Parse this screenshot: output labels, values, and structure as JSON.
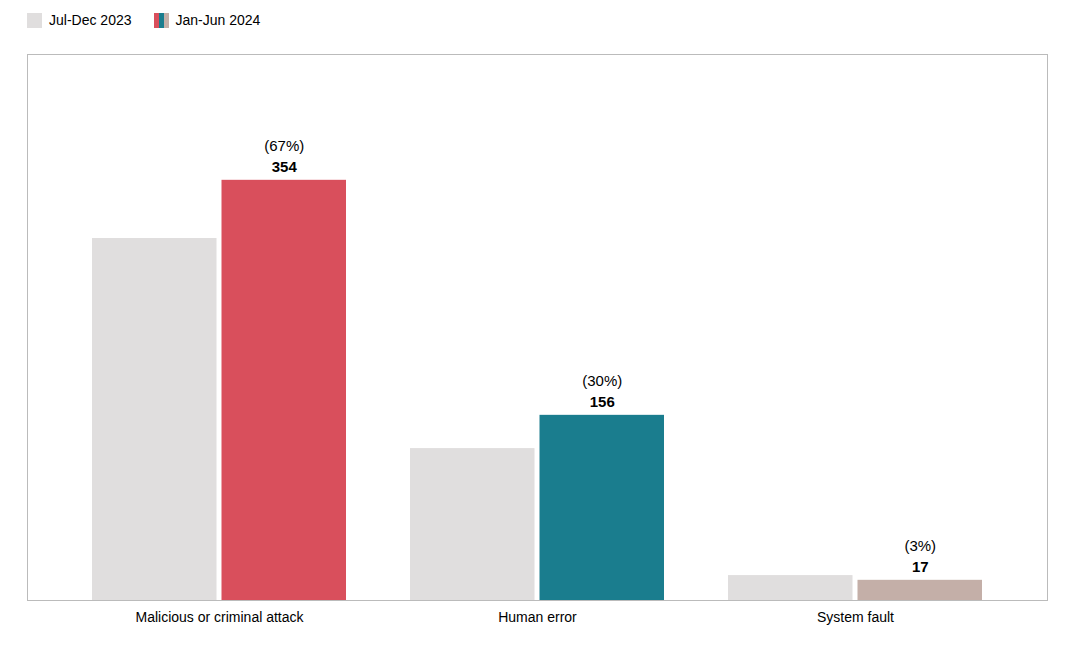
{
  "chart_data": {
    "type": "bar",
    "categories": [
      "Malicious or criminal attack",
      "Human error",
      "System fault"
    ],
    "series": [
      {
        "name": "Jul-Dec 2023",
        "color": "#e0dede",
        "values": [
          305,
          128,
          21
        ]
      },
      {
        "name": "Jan-Jun 2024",
        "colors": [
          "#d94f5c",
          "#1a7d8e",
          "#c4afa8"
        ],
        "values": [
          354,
          156,
          17
        ],
        "data_labels": true,
        "shares": [
          67,
          30,
          3
        ],
        "share_labels": [
          "(67%)",
          "(30%)",
          "(3%)"
        ]
      }
    ],
    "ylim": [
      0,
      460
    ],
    "yticks": [],
    "tick_labels": "x",
    "legend": "upper left"
  }
}
